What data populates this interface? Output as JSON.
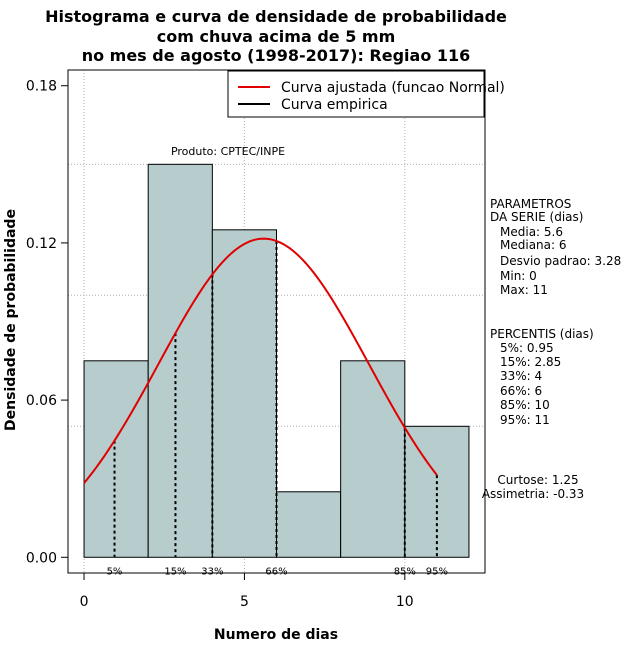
{
  "chart_data": {
    "type": "histogram",
    "title_lines": [
      "Histograma e curva de densidade de probabilidade",
      "com chuva acima de 5 mm",
      "no mes de agosto (1998-2017): Regiao 116"
    ],
    "xlabel": "Numero de dias",
    "ylabel": "Densidade de probabilidade",
    "xlim": [
      -0.5,
      12.5
    ],
    "ylim": [
      -0.006,
      0.186
    ],
    "xticks": [
      0,
      5,
      10
    ],
    "yticks": [
      0.0,
      0.06,
      0.12,
      0.18
    ],
    "ytick_labels": [
      "0.00",
      "0.06",
      "0.12",
      "0.18"
    ],
    "grid_v": [
      0,
      5,
      10
    ],
    "grid_h": [
      0.05,
      0.1,
      0.15
    ],
    "bins": [
      {
        "start": 0,
        "end": 2,
        "density": 0.075
      },
      {
        "start": 2,
        "end": 4,
        "density": 0.15
      },
      {
        "start": 4,
        "end": 6,
        "density": 0.125
      },
      {
        "start": 6,
        "end": 8,
        "density": 0.025
      },
      {
        "start": 8,
        "end": 10,
        "density": 0.075
      },
      {
        "start": 10,
        "end": 12,
        "density": 0.05
      }
    ],
    "bar_color": "#b7cdcd",
    "curve": {
      "name": "Curva ajustada (funcao Normal)",
      "mean": 5.6,
      "sd": 3.28,
      "x_from": 0,
      "x_to": 11,
      "color": "#e00000"
    },
    "empirical_curve": {
      "name": "Curva empirica",
      "color": "#000000"
    },
    "percentile_marks": [
      {
        "x": 0.95,
        "label": "5%"
      },
      {
        "x": 2.85,
        "label": "15%"
      },
      {
        "x": 4,
        "label": "33%"
      },
      {
        "x": 6,
        "label": "66%"
      },
      {
        "x": 10,
        "label": "85%"
      },
      {
        "x": 11,
        "label": "95%"
      }
    ],
    "product_label": "Produto: CPTEC/INPE",
    "legend_position": "top-right",
    "params_header": [
      "PARAMETROS",
      "DA SERIE (dias)"
    ],
    "params": [
      "Media: 5.6",
      "Mediana: 6",
      "Desvio padrao: 3.28",
      "Min: 0",
      "Max: 11"
    ],
    "percentis_header": "PERCENTIS (dias)",
    "percentis": [
      "5%: 0.95",
      "15%: 2.85",
      "33%: 4",
      "66%: 6",
      "85%: 10",
      "95%: 11"
    ],
    "curtose": "Curtose: 1.25",
    "assimetria": "Assimetria: -0.33"
  }
}
